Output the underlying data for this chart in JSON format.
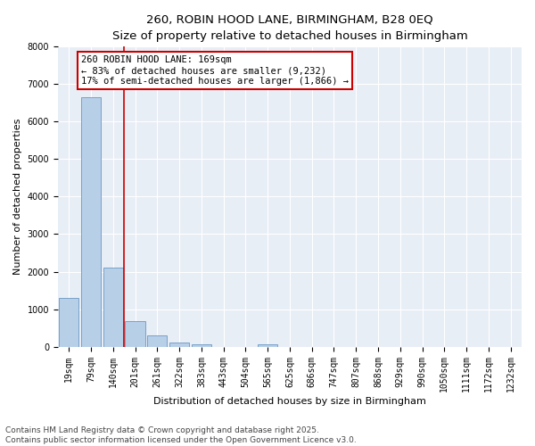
{
  "title_line1": "260, ROBIN HOOD LANE, BIRMINGHAM, B28 0EQ",
  "title_line2": "Size of property relative to detached houses in Birmingham",
  "xlabel": "Distribution of detached houses by size in Birmingham",
  "ylabel": "Number of detached properties",
  "categories": [
    "19sqm",
    "79sqm",
    "140sqm",
    "201sqm",
    "261sqm",
    "322sqm",
    "383sqm",
    "443sqm",
    "504sqm",
    "565sqm",
    "625sqm",
    "686sqm",
    "747sqm",
    "807sqm",
    "868sqm",
    "929sqm",
    "990sqm",
    "1050sqm",
    "1111sqm",
    "1172sqm",
    "1232sqm"
  ],
  "values": [
    1300,
    6650,
    2100,
    680,
    310,
    115,
    60,
    0,
    0,
    60,
    0,
    0,
    0,
    0,
    0,
    0,
    0,
    0,
    0,
    0,
    0
  ],
  "bar_color": "#b8cfe8",
  "bar_edge_color": "#5588bb",
  "vline_color": "#cc0000",
  "annotation_text": "260 ROBIN HOOD LANE: 169sqm\n← 83% of detached houses are smaller (9,232)\n17% of semi-detached houses are larger (1,866) →",
  "annotation_box_color": "#cc0000",
  "annotation_box_facecolor": "white",
  "ylim": [
    0,
    8000
  ],
  "yticks": [
    0,
    1000,
    2000,
    3000,
    4000,
    5000,
    6000,
    7000,
    8000
  ],
  "background_color": "#e8eef6",
  "grid_color": "white",
  "footer_line1": "Contains HM Land Registry data © Crown copyright and database right 2025.",
  "footer_line2": "Contains public sector information licensed under the Open Government Licence v3.0.",
  "title_fontsize": 9.5,
  "subtitle_fontsize": 8.5,
  "axis_label_fontsize": 8,
  "tick_fontsize": 7,
  "annotation_fontsize": 7.5,
  "footer_fontsize": 6.5
}
